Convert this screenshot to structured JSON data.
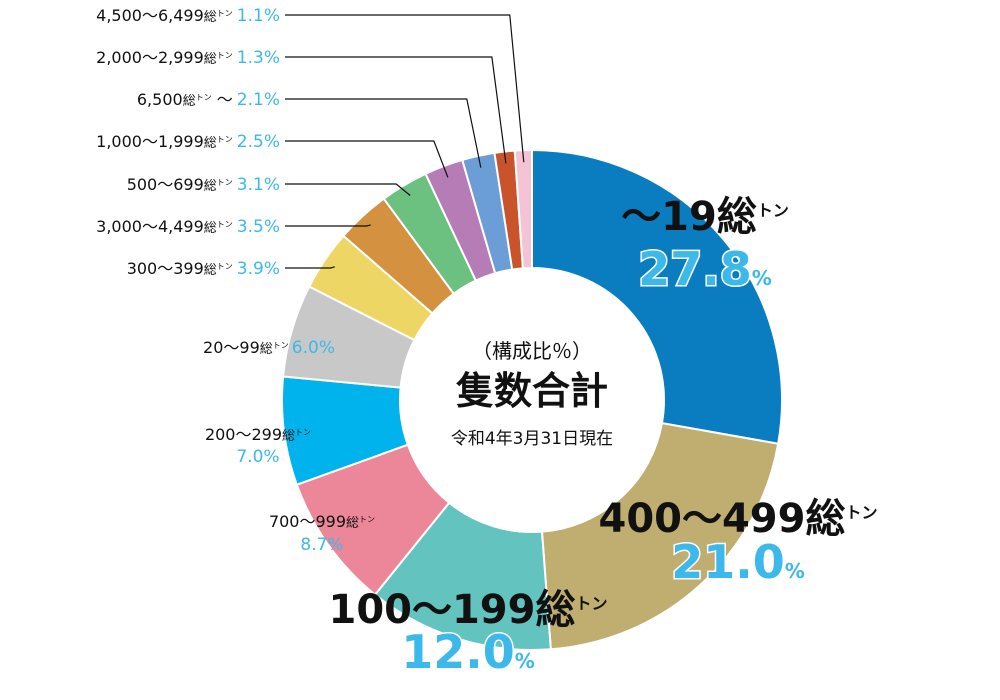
{
  "chart_data": {
    "type": "donut",
    "center": {
      "subtitle": "（構成比％）",
      "title": "隻数合計",
      "date": "令和4年3月31日現在"
    },
    "unit_large": "総",
    "unit_small": "トン",
    "slices": [
      {
        "label": "～19",
        "value": 27.8,
        "color": "#0a7dc1",
        "display": "27.8",
        "pct": "%"
      },
      {
        "label": "400～499",
        "value": 21.0,
        "color": "#bfae70",
        "display": "21.0",
        "pct": "%"
      },
      {
        "label": "100～199",
        "value": 12.0,
        "color": "#63c3bf",
        "display": "12.0",
        "pct": "%"
      },
      {
        "label": "700～999",
        "value": 8.7,
        "color": "#ec8799",
        "display": "8.7%"
      },
      {
        "label": "200～299",
        "value": 7.0,
        "color": "#00b3ec",
        "display": "7.0%"
      },
      {
        "label": "20～99",
        "value": 6.0,
        "color": "#c8c8c8",
        "display": "6.0%"
      },
      {
        "label": "300～399",
        "value": 3.9,
        "color": "#eed664",
        "display": "3.9%"
      },
      {
        "label": "3,000～4,499",
        "value": 3.5,
        "color": "#d4913f",
        "display": "3.5%"
      },
      {
        "label": "500～699",
        "value": 3.1,
        "color": "#6cc080",
        "display": "3.1%"
      },
      {
        "label": "1,000～1,999",
        "value": 2.5,
        "color": "#b67cb6",
        "display": "2.5%"
      },
      {
        "label": "6,500",
        "suffix": " ～",
        "value": 2.1,
        "color": "#6b9ed6",
        "display": "2.1%"
      },
      {
        "label": "2,000～2,999",
        "value": 1.3,
        "color": "#c9542c",
        "display": "1.3%"
      },
      {
        "label": "4,500～6,499",
        "value": 1.1,
        "color": "#f4c3d5",
        "display": "1.1%"
      }
    ]
  }
}
